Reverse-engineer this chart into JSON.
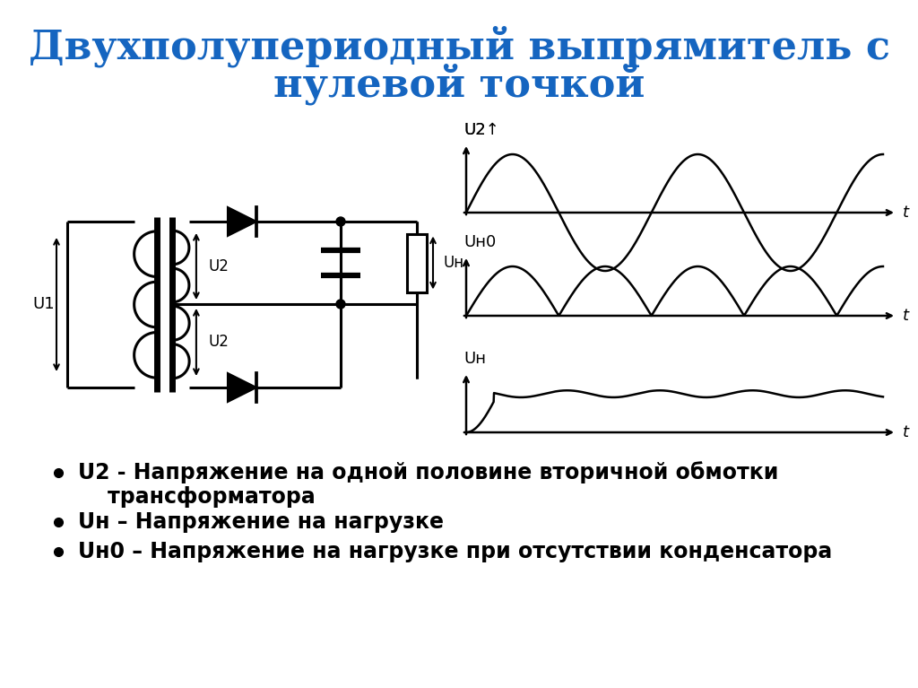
{
  "title_line1": "Двухполупериодный выпрямитель с",
  "title_line2": "нулевой точкой",
  "title_color": "#1565c0",
  "title_fontsize": 32,
  "bg_color": "#ffffff",
  "bullet_items": [
    "U2 - Напряжение на одной половине вторичной обмотки\n    трансформатора",
    "Uн – Напряжение на нагрузке",
    "Uн0 – Напряжение на нагрузке при отсутствии конденсатора"
  ],
  "bullet_fontsize": 17,
  "diagram_color": "#000000"
}
